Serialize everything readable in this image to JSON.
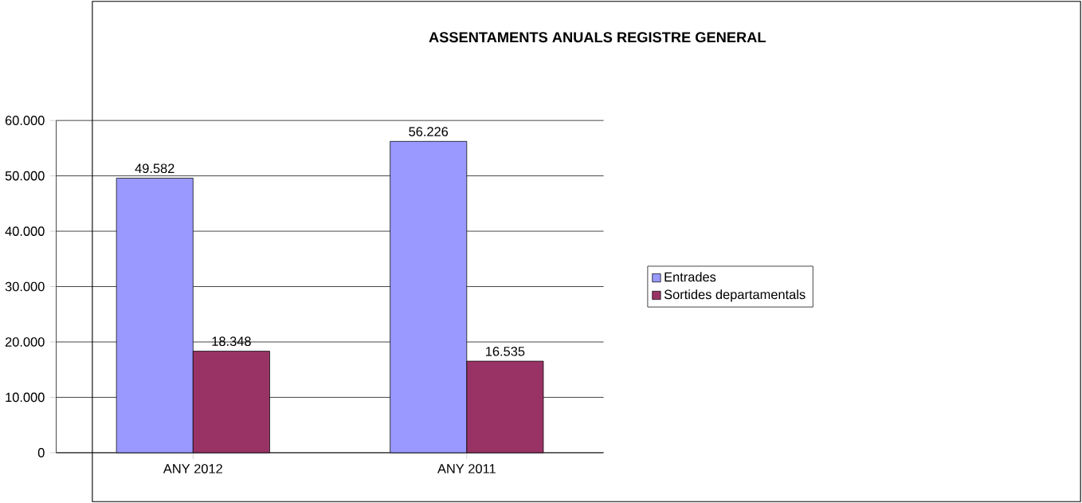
{
  "chart_data": {
    "type": "bar",
    "title": "ASSENTAMENTS ANUALS REGISTRE GENERAL",
    "categories": [
      "ANY 2012",
      "ANY 2011"
    ],
    "series": [
      {
        "name": "Entrades",
        "color": "#9999ff",
        "values": [
          49582,
          56226
        ],
        "value_labels": [
          "49.582",
          "56.226"
        ]
      },
      {
        "name": "Sortides departamentals",
        "color": "#993366",
        "values": [
          18348,
          16535
        ],
        "value_labels": [
          "18.348",
          "16.535"
        ]
      }
    ],
    "ylim": [
      0,
      60000
    ],
    "yticks": [
      {
        "value": 0,
        "label": "0"
      },
      {
        "value": 10000,
        "label": "10.000"
      },
      {
        "value": 20000,
        "label": "20.000"
      },
      {
        "value": 30000,
        "label": "30.000"
      },
      {
        "value": 40000,
        "label": "40.000"
      },
      {
        "value": 50000,
        "label": "50.000"
      },
      {
        "value": 60000,
        "label": "60.000"
      }
    ],
    "grid": "y",
    "legend": "right"
  }
}
